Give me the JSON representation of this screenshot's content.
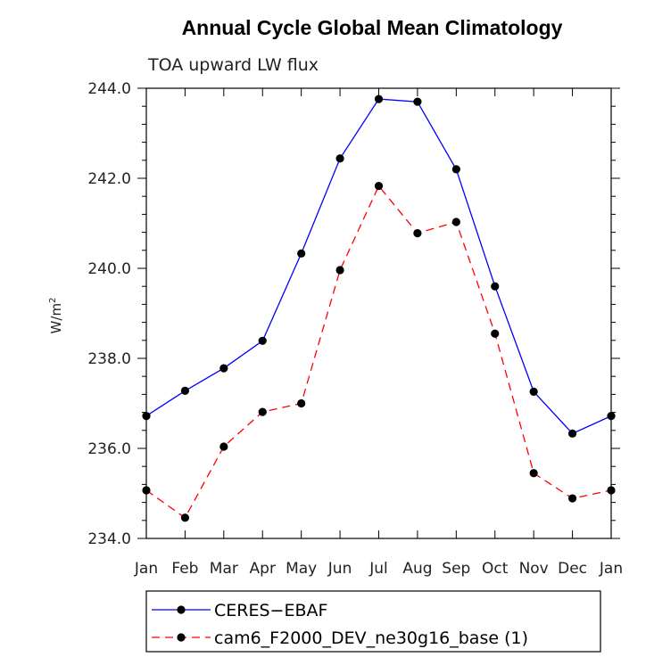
{
  "chart_data": {
    "type": "line",
    "title": "Annual Cycle Global Mean Climatology",
    "subtitle": "TOA upward LW flux",
    "ylabel_base": "W/m",
    "ylabel_sup": "2",
    "xlabel": "",
    "ylim": [
      234.0,
      244.0
    ],
    "yticks": [
      "234.0",
      "236.0",
      "238.0",
      "240.0",
      "242.0",
      "244.0"
    ],
    "categories": [
      "Jan",
      "Feb",
      "Mar",
      "Apr",
      "May",
      "Jun",
      "Jul",
      "Aug",
      "Sep",
      "Oct",
      "Nov",
      "Dec",
      "Jan"
    ],
    "series": [
      {
        "name": "CERES−EBAF",
        "color": "#0000ff",
        "dash": "solid",
        "values": [
          236.72,
          237.28,
          237.78,
          238.39,
          240.33,
          242.44,
          243.76,
          243.7,
          242.2,
          239.6,
          237.26,
          236.33,
          236.72
        ]
      },
      {
        "name": "cam6_F2000_DEV_ne30g16_base (1)",
        "color": "#ff0000",
        "dash": "dashed",
        "values": [
          235.07,
          234.46,
          236.04,
          236.81,
          237.0,
          239.96,
          241.83,
          240.78,
          241.03,
          238.55,
          235.45,
          234.89,
          235.07
        ]
      }
    ],
    "legend_position": "bottom"
  }
}
